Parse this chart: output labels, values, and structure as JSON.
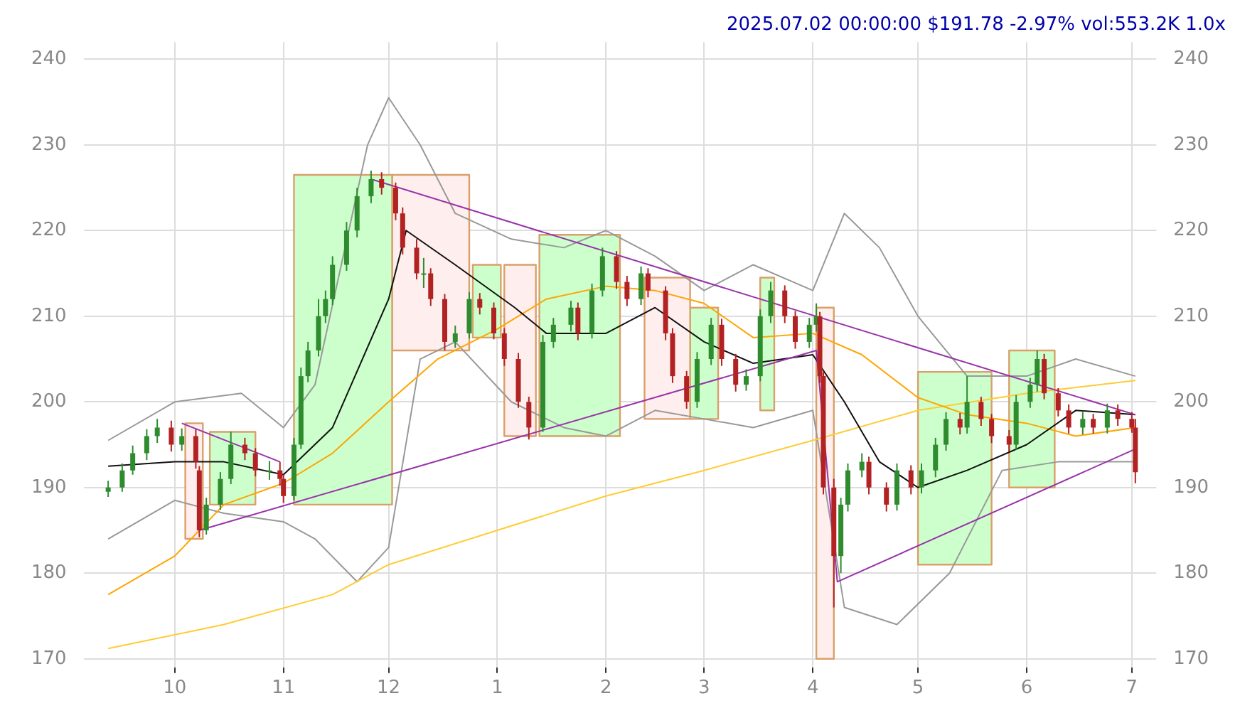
{
  "chart_data": {
    "type": "candlestick",
    "title": "2025.07.02 00:00:00 $191.78 -2.97% vol:553.2K 1.0x",
    "x": [
      "2024-09-12",
      "2024-09-16",
      "2024-09-19",
      "2024-09-23",
      "2024-09-26",
      "2024-09-30",
      "2024-10-03",
      "2024-10-07",
      "2024-10-08",
      "2024-10-10",
      "2024-10-14",
      "2024-10-17",
      "2024-10-21",
      "2024-10-24",
      "2024-10-28",
      "2024-10-31",
      "2024-11-01",
      "2024-11-04",
      "2024-11-06",
      "2024-11-08",
      "2024-11-11",
      "2024-11-13",
      "2024-11-15",
      "2024-11-19",
      "2024-11-22",
      "2024-11-26",
      "2024-11-29",
      "2024-12-03",
      "2024-12-05",
      "2024-12-09",
      "2024-12-11",
      "2024-12-13",
      "2024-12-17",
      "2024-12-20",
      "2024-12-24",
      "2024-12-27",
      "2024-12-31",
      "2025-01-03",
      "2025-01-07",
      "2025-01-10",
      "2025-01-14",
      "2025-01-17",
      "2025-01-22",
      "2025-01-24",
      "2025-01-28",
      "2025-01-31",
      "2025-02-04",
      "2025-02-07",
      "2025-02-11",
      "2025-02-13",
      "2025-02-18",
      "2025-02-20",
      "2025-02-24",
      "2025-02-27",
      "2025-03-03",
      "2025-03-06",
      "2025-03-10",
      "2025-03-13",
      "2025-03-17",
      "2025-03-20",
      "2025-03-24",
      "2025-03-27",
      "2025-03-31",
      "2025-04-02",
      "2025-04-03",
      "2025-04-04",
      "2025-04-07",
      "2025-04-09",
      "2025-04-11",
      "2025-04-15",
      "2025-04-17",
      "2025-04-22",
      "2025-04-25",
      "2025-04-29",
      "2025-05-02",
      "2025-05-06",
      "2025-05-09",
      "2025-05-13",
      "2025-05-15",
      "2025-05-19",
      "2025-05-22",
      "2025-05-27",
      "2025-05-29",
      "2025-06-02",
      "2025-06-04",
      "2025-06-06",
      "2025-06-10",
      "2025-06-13",
      "2025-06-17",
      "2025-06-20",
      "2025-06-24",
      "2025-06-27",
      "2025-07-01",
      "2025-07-02"
    ],
    "ohlc": [
      [
        189.5,
        190.8,
        188.9,
        190
      ],
      [
        190,
        192.8,
        189.5,
        192
      ],
      [
        192,
        194.9,
        191.5,
        194
      ],
      [
        194,
        196.8,
        193.2,
        196
      ],
      [
        196,
        198,
        195.2,
        197
      ],
      [
        197,
        197.8,
        194.2,
        195
      ],
      [
        195,
        196.9,
        194.3,
        196
      ],
      [
        196,
        196.8,
        192.2,
        193
      ],
      [
        192,
        192.5,
        184.2,
        185
      ],
      [
        185,
        188.8,
        184.5,
        188
      ],
      [
        188,
        191.8,
        187.4,
        191
      ],
      [
        191,
        196.5,
        190.4,
        195
      ],
      [
        195,
        195.8,
        193.2,
        194
      ],
      [
        194,
        194.6,
        191.3,
        192
      ],
      [
        192,
        193.1,
        190.9,
        192
      ],
      [
        192,
        193,
        190.2,
        191
      ],
      [
        191,
        191.5,
        188.2,
        189
      ],
      [
        189,
        195.8,
        188.5,
        195
      ],
      [
        195,
        204,
        194.5,
        203
      ],
      [
        203,
        207,
        202.3,
        206
      ],
      [
        206,
        212,
        205.3,
        210
      ],
      [
        210,
        213,
        209.2,
        212
      ],
      [
        212,
        217,
        211.3,
        216
      ],
      [
        216,
        221,
        215.3,
        220
      ],
      [
        220,
        225,
        219.2,
        224
      ],
      [
        224,
        227,
        223.2,
        226
      ],
      [
        226,
        226.8,
        224.2,
        225
      ],
      [
        225,
        225.6,
        221.2,
        222
      ],
      [
        222,
        222.7,
        217.2,
        218
      ],
      [
        218,
        219,
        214.3,
        215
      ],
      [
        215,
        216.8,
        213.3,
        215
      ],
      [
        215,
        215.6,
        211.2,
        212
      ],
      [
        212,
        212.6,
        206,
        207
      ],
      [
        207,
        208.9,
        206.3,
        208
      ],
      [
        208,
        212.8,
        207.4,
        212
      ],
      [
        212,
        212.7,
        210.2,
        211
      ],
      [
        211,
        211.6,
        207.3,
        208
      ],
      [
        208,
        208.6,
        204.2,
        205
      ],
      [
        205,
        205.7,
        199.3,
        200
      ],
      [
        200,
        200.6,
        195.6,
        197
      ],
      [
        197,
        207.8,
        196.5,
        207
      ],
      [
        207,
        209.8,
        206.3,
        209
      ],
      [
        209,
        211.8,
        208.2,
        211
      ],
      [
        211,
        211.6,
        207.2,
        208
      ],
      [
        208,
        213.8,
        207.4,
        213
      ],
      [
        213,
        218,
        212.3,
        217
      ],
      [
        217,
        217.6,
        213.2,
        214
      ],
      [
        214,
        214.7,
        211.2,
        212
      ],
      [
        212,
        215.8,
        211.3,
        215
      ],
      [
        215,
        215.6,
        212.2,
        213
      ],
      [
        213,
        213.5,
        207.2,
        208
      ],
      [
        208,
        208.6,
        202.2,
        203
      ],
      [
        203,
        203.6,
        199.2,
        200
      ],
      [
        200,
        205.8,
        199.3,
        205
      ],
      [
        205,
        209.8,
        204.3,
        209
      ],
      [
        209,
        209.7,
        204.2,
        205
      ],
      [
        205,
        205.6,
        201.2,
        202
      ],
      [
        202,
        203.8,
        201.3,
        203
      ],
      [
        203,
        210.8,
        202.4,
        210
      ],
      [
        210,
        214,
        209.2,
        213
      ],
      [
        213,
        213.6,
        209.2,
        210
      ],
      [
        210,
        210.6,
        206.2,
        207
      ],
      [
        207,
        209.8,
        206.3,
        209
      ],
      [
        209,
        211.5,
        208.2,
        210
      ],
      [
        210,
        210.5,
        202.2,
        203
      ],
      [
        203,
        203.5,
        189.2,
        190
      ],
      [
        190,
        191,
        176,
        182
      ],
      [
        182,
        188.8,
        180,
        188
      ],
      [
        188,
        192.8,
        187.2,
        192
      ],
      [
        192,
        194,
        191.2,
        193
      ],
      [
        193,
        193.6,
        189.2,
        190
      ],
      [
        190,
        190.6,
        187.2,
        188
      ],
      [
        188,
        192.8,
        187.3,
        192
      ],
      [
        192,
        192.6,
        189.2,
        190
      ],
      [
        190,
        192.8,
        189.3,
        192
      ],
      [
        192,
        195.8,
        191.2,
        195
      ],
      [
        195,
        198.8,
        194.3,
        198
      ],
      [
        198,
        198.7,
        196.2,
        197
      ],
      [
        197,
        203,
        196.3,
        200
      ],
      [
        200,
        200.6,
        197.2,
        198
      ],
      [
        198,
        198.6,
        195.2,
        196
      ],
      [
        196,
        196.7,
        194.2,
        195
      ],
      [
        195,
        200.8,
        194.4,
        200
      ],
      [
        200,
        202.8,
        199.3,
        202
      ],
      [
        202,
        206,
        201.2,
        205
      ],
      [
        205,
        205.6,
        200.3,
        201
      ],
      [
        201,
        201.6,
        198.3,
        199
      ],
      [
        199,
        199.7,
        196.3,
        197
      ],
      [
        197,
        198.8,
        196.2,
        198
      ],
      [
        198,
        198.6,
        196.3,
        197
      ],
      [
        197,
        199.8,
        196.3,
        199
      ],
      [
        199,
        199.7,
        197.2,
        198
      ],
      [
        198,
        198.8,
        196.4,
        197
      ],
      [
        197,
        198,
        190.5,
        191.78
      ]
    ],
    "series": [
      {
        "type": "area",
        "color": "#ffeeee",
        "x": [
          "2024-10-04",
          "2024-10-09",
          "2024-10-09",
          "2024-10-04",
          "2024-10-04"
        ],
        "values": [
          184,
          184,
          197.5,
          197.5,
          184
        ]
      },
      {
        "type": "area",
        "color": "#ccffcc",
        "x": [
          "2024-10-11",
          "2024-10-24",
          "2024-10-24",
          "2024-10-11",
          "2024-10-11"
        ],
        "values": [
          188,
          188,
          196.5,
          196.5,
          188
        ]
      },
      {
        "type": "area",
        "color": "#ccffcc",
        "x": [
          "2024-11-04",
          "2024-12-02",
          "2024-12-02",
          "2024-11-04",
          "2024-11-04"
        ],
        "values": [
          188,
          188,
          226.5,
          226.5,
          188
        ]
      },
      {
        "type": "area",
        "color": "#ffeeee",
        "x": [
          "2024-12-02",
          "2024-12-24",
          "2024-12-24",
          "2024-12-02",
          "2024-12-02"
        ],
        "values": [
          206,
          206,
          226.5,
          226.5,
          206
        ]
      },
      {
        "type": "area",
        "color": "#ccffcc",
        "x": [
          "2024-12-25",
          "2025-01-02",
          "2025-01-02",
          "2024-12-25",
          "2024-12-25"
        ],
        "values": [
          207.5,
          207.5,
          216,
          216,
          207.5
        ]
      },
      {
        "type": "area",
        "color": "#ffeeee",
        "x": [
          "2025-01-03",
          "2025-01-12",
          "2025-01-12",
          "2025-01-03",
          "2025-01-03"
        ],
        "values": [
          196,
          196,
          216,
          216,
          196
        ]
      },
      {
        "type": "area",
        "color": "#ccffcc",
        "x": [
          "2025-01-13",
          "2025-02-05",
          "2025-02-05",
          "2025-01-13",
          "2025-01-13"
        ],
        "values": [
          196,
          196,
          219.5,
          219.5,
          196
        ]
      },
      {
        "type": "area",
        "color": "#ffeeee",
        "x": [
          "2025-02-12",
          "2025-02-25",
          "2025-02-25",
          "2025-02-12",
          "2025-02-12"
        ],
        "values": [
          198,
          198,
          214.5,
          214.5,
          198
        ]
      },
      {
        "type": "area",
        "color": "#ccffcc",
        "x": [
          "2025-02-25",
          "2025-03-05",
          "2025-03-05",
          "2025-02-25",
          "2025-02-25"
        ],
        "values": [
          198,
          198,
          211,
          211,
          198
        ]
      },
      {
        "type": "area",
        "color": "#ccffcc",
        "x": [
          "2025-03-17",
          "2025-03-21",
          "2025-03-21",
          "2025-03-17",
          "2025-03-17"
        ],
        "values": [
          199,
          199,
          214.5,
          214.5,
          199
        ]
      },
      {
        "type": "area",
        "color": "#ffeeee",
        "x": [
          "2025-04-02",
          "2025-04-07",
          "2025-04-07",
          "2025-04-02",
          "2025-04-02"
        ],
        "values": [
          170,
          170,
          211,
          211,
          170
        ]
      },
      {
        "type": "area",
        "color": "#ccffcc",
        "x": [
          "2025-05-01",
          "2025-05-22",
          "2025-05-22",
          "2025-05-01",
          "2025-05-01"
        ],
        "values": [
          181,
          181,
          203.5,
          203.5,
          181
        ]
      },
      {
        "type": "area",
        "color": "#ccffcc",
        "x": [
          "2025-05-27",
          "2025-06-09",
          "2025-06-09",
          "2025-05-27",
          "2025-05-27"
        ],
        "values": [
          190,
          190,
          206,
          206,
          190
        ]
      },
      {
        "type": "line",
        "color": "#999999",
        "x": [
          "2024-09-12",
          "2024-10-01",
          "2024-10-20",
          "2024-11-01",
          "2024-11-10",
          "2024-11-25",
          "2024-12-01",
          "2024-12-10",
          "2024-12-20",
          "2025-01-05",
          "2025-01-20",
          "2025-02-01",
          "2025-02-15",
          "2025-03-01",
          "2025-03-15",
          "2025-04-01",
          "2025-04-10",
          "2025-04-20",
          "2025-05-01",
          "2025-05-15",
          "2025-06-01",
          "2025-06-15",
          "2025-07-02"
        ],
        "values": [
          195.5,
          200,
          201,
          197,
          202,
          230,
          235.5,
          230,
          222,
          219,
          218,
          220,
          217,
          213,
          216,
          213,
          222,
          218,
          210,
          203,
          203,
          205,
          203
        ]
      },
      {
        "type": "line",
        "color": "#999999",
        "x": [
          "2024-09-12",
          "2024-10-01",
          "2024-10-15",
          "2024-11-01",
          "2024-11-10",
          "2024-11-22",
          "2024-12-01",
          "2024-12-10",
          "2024-12-20",
          "2025-01-05",
          "2025-01-20",
          "2025-02-01",
          "2025-02-15",
          "2025-03-01",
          "2025-03-15",
          "2025-04-01",
          "2025-04-10",
          "2025-04-25",
          "2025-05-10",
          "2025-05-25",
          "2025-06-10",
          "2025-07-02"
        ],
        "values": [
          184,
          188.5,
          187,
          186,
          184,
          179,
          183,
          205,
          207,
          200,
          197,
          196,
          199,
          198,
          197,
          199,
          176,
          174,
          180,
          192,
          193,
          193
        ]
      },
      {
        "type": "line",
        "color": "#ffcc33",
        "x": [
          "2024-09-12",
          "2024-10-15",
          "2024-11-15",
          "2024-12-01",
          "2025-01-01",
          "2025-02-01",
          "2025-03-01",
          "2025-04-01",
          "2025-05-01",
          "2025-06-01",
          "2025-07-02"
        ],
        "values": [
          171.2,
          174,
          177.5,
          181,
          185,
          189,
          192,
          195.5,
          199,
          201,
          202.5
        ]
      },
      {
        "type": "line",
        "color": "#ffa500",
        "x": [
          "2024-09-12",
          "2024-10-01",
          "2024-10-15",
          "2024-11-01",
          "2024-11-15",
          "2024-12-01",
          "2024-12-15",
          "2025-01-01",
          "2025-01-15",
          "2025-02-01",
          "2025-02-15",
          "2025-03-01",
          "2025-03-15",
          "2025-04-01",
          "2025-04-15",
          "2025-05-01",
          "2025-05-15",
          "2025-06-01",
          "2025-06-15",
          "2025-07-02"
        ],
        "values": [
          177.5,
          182,
          188,
          190.5,
          194,
          200,
          205,
          208.5,
          212,
          213.5,
          213,
          211.5,
          207.5,
          208,
          205.5,
          200.5,
          198.5,
          197.5,
          196,
          197
        ]
      },
      {
        "type": "line",
        "color": "#111111",
        "x": [
          "2024-09-12",
          "2024-10-01",
          "2024-10-15",
          "2024-11-01",
          "2024-11-15",
          "2024-12-01",
          "2024-12-06",
          "2024-12-20",
          "2025-01-06",
          "2025-01-15",
          "2025-02-01",
          "2025-02-15",
          "2025-03-01",
          "2025-03-15",
          "2025-04-01",
          "2025-04-10",
          "2025-04-20",
          "2025-05-01",
          "2025-05-15",
          "2025-06-01",
          "2025-06-15",
          "2025-07-02"
        ],
        "values": [
          192.5,
          193,
          193,
          191.5,
          197,
          212,
          220,
          216,
          211,
          208,
          208,
          211,
          207,
          204.5,
          205.5,
          200,
          193,
          190,
          192,
          195,
          199,
          198.5
        ]
      },
      {
        "type": "line",
        "color": "#9933aa",
        "x": [
          "2024-10-08",
          "2025-04-02",
          "2025-04-08",
          "2025-07-02"
        ],
        "values": [
          185,
          206,
          179,
          194.5
        ]
      },
      {
        "type": "line",
        "color": "#9933aa",
        "x": [
          "2024-11-26",
          "2025-07-02"
        ],
        "values": [
          226,
          198.5
        ]
      },
      {
        "type": "line",
        "color": "#9933aa",
        "x": [
          "2024-10-03",
          "2024-10-31"
        ],
        "values": [
          197.5,
          193
        ]
      }
    ],
    "xlim": [
      "2024-09-05",
      "2025-07-08"
    ],
    "xticks": [
      {
        "value": "2024-10-01",
        "label": "10"
      },
      {
        "value": "2024-11-01",
        "label": "11"
      },
      {
        "value": "2024-12-01",
        "label": "12"
      },
      {
        "value": "2025-01-01",
        "label": "1"
      },
      {
        "value": "2025-02-01",
        "label": "2"
      },
      {
        "value": "2025-03-01",
        "label": "3"
      },
      {
        "value": "2025-04-01",
        "label": "4"
      },
      {
        "value": "2025-05-01",
        "label": "5"
      },
      {
        "value": "2025-06-01",
        "label": "6"
      },
      {
        "value": "2025-07-01",
        "label": "7"
      }
    ],
    "ylim": [
      169,
      242
    ],
    "yticks": [
      170,
      180,
      190,
      200,
      210,
      220,
      230,
      240
    ],
    "y2lim": [
      169,
      242
    ],
    "y2ticks": [
      170,
      180,
      190,
      200,
      210,
      220,
      230,
      240
    ],
    "grid": true,
    "legend": false
  }
}
